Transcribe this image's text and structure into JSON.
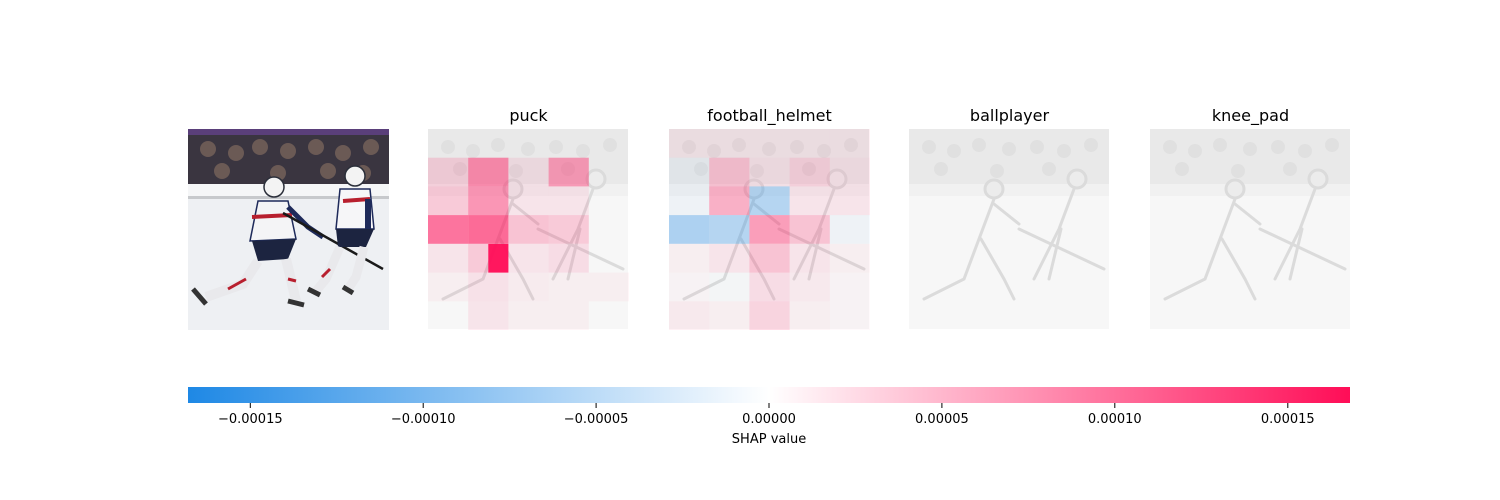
{
  "chart_data": {
    "type": "heatmap",
    "description_free": true,
    "panels": [
      {
        "title": "",
        "kind": "original-image"
      },
      {
        "title": "puck",
        "kind": "shap-overlay",
        "grid": [
          [
            0,
            0,
            0,
            0,
            0
          ],
          [
            0.2,
            0.6,
            0.1,
            0.5,
            0
          ],
          [
            0.25,
            0.55,
            0.1,
            0.1,
            0
          ],
          [
            0.75,
            0.8,
            0.3,
            0.25,
            0
          ],
          [
            0.1,
            0.25,
            0.1,
            0.15,
            0
          ],
          [
            0.05,
            0.12,
            0.07,
            0.05,
            0.05
          ],
          [
            0,
            0.1,
            0.05,
            0.05,
            0
          ]
        ],
        "hot_cell": [
          4,
          1,
          1.0
        ]
      },
      {
        "title": "football_helmet",
        "kind": "shap-overlay",
        "grid": [
          [
            0.08,
            0.08,
            0.08,
            0.08,
            0.08
          ],
          [
            -0.05,
            0.3,
            0.1,
            0.2,
            0.1
          ],
          [
            -0.05,
            0.4,
            -0.4,
            0.1,
            0.1
          ],
          [
            -0.45,
            -0.4,
            0.5,
            0.3,
            -0.05
          ],
          [
            0.05,
            0.1,
            0.3,
            0.1,
            0.05
          ],
          [
            0.03,
            -0.03,
            0.15,
            0.08,
            0.03
          ],
          [
            0.08,
            0.05,
            0.2,
            0.05,
            0.03
          ]
        ]
      },
      {
        "title": "ballplayer",
        "kind": "shap-overlay"
      },
      {
        "title": "knee_pad",
        "kind": "shap-overlay"
      }
    ],
    "colorbar": {
      "min": -0.000168,
      "max": 0.000168,
      "ticks": [
        -0.00015,
        -0.0001,
        -5e-05,
        0,
        5e-05,
        0.0001,
        0.00015
      ],
      "tick_labels": [
        "−0.00015",
        "−0.00010",
        "−0.00005",
        "0.00000",
        "0.00005",
        "0.00010",
        "0.00015"
      ],
      "label": "SHAP value",
      "neg_color": "#1e88e5",
      "pos_color": "#ff0d57"
    }
  }
}
